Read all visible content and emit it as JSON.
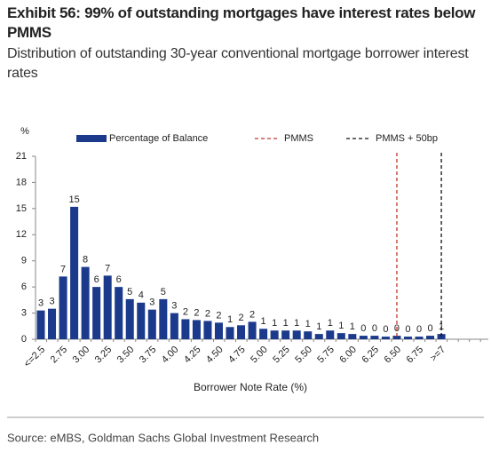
{
  "chart_data": {
    "type": "bar",
    "title": "Exhibit 56: 99% of outstanding mortgages have interest rates below PMMS",
    "subtitle": "Distribution of outstanding 30-year conventional mortgage borrower interest rates",
    "y_axis_label": "%",
    "x_axis_label": "Borrower Note Rate (%)",
    "source": "Source: eMBS, Goldman Sachs Global Investment Research",
    "categories": [
      "<=2.5",
      null,
      "2.75",
      null,
      "3.00",
      null,
      "3.25",
      null,
      "3.50",
      null,
      "3.75",
      null,
      "4.00",
      null,
      "4.25",
      null,
      "4.50",
      null,
      "4.75",
      null,
      "5.00",
      null,
      "5.25",
      null,
      "5.50",
      null,
      "5.75",
      null,
      "6.00",
      null,
      "6.25",
      null,
      "6.50",
      null,
      "6.75",
      null,
      ">=7"
    ],
    "series": [
      {
        "name": "Percentage of Balance",
        "color": "#1b3a8c",
        "values": [
          3.3,
          3.5,
          7.2,
          15.2,
          8.3,
          6.0,
          7.3,
          6.0,
          4.6,
          4.2,
          3.4,
          4.6,
          3.0,
          2.3,
          2.2,
          2.1,
          1.9,
          1.4,
          1.6,
          2.0,
          1.2,
          1.0,
          1.0,
          1.0,
          0.9,
          0.6,
          1.0,
          0.7,
          0.6,
          0.4,
          0.4,
          0.3,
          0.4,
          0.3,
          0.3,
          0.4,
          0.6
        ],
        "value_labels": [
          "3",
          "3",
          "7",
          "15",
          "8",
          "6",
          "7",
          "6",
          "5",
          "4",
          "3",
          "5",
          "3",
          "2",
          "2",
          "2",
          "2",
          "1",
          "2",
          "2",
          "1",
          "1",
          "1",
          "1",
          "1",
          "1",
          "1",
          "1",
          "1",
          "0",
          "0",
          "0",
          "0",
          "0",
          "0",
          "0",
          "1"
        ]
      }
    ],
    "reference_lines": [
      {
        "name": "PMMS",
        "x": 6.5,
        "color": "#c0392b"
      },
      {
        "name": "PMMS + 50bp",
        "x": 7.0,
        "color": "#111111"
      }
    ],
    "ylim": [
      0,
      21
    ],
    "yticks": [
      0,
      3,
      6,
      9,
      12,
      15,
      18,
      21
    ],
    "grid": false
  }
}
